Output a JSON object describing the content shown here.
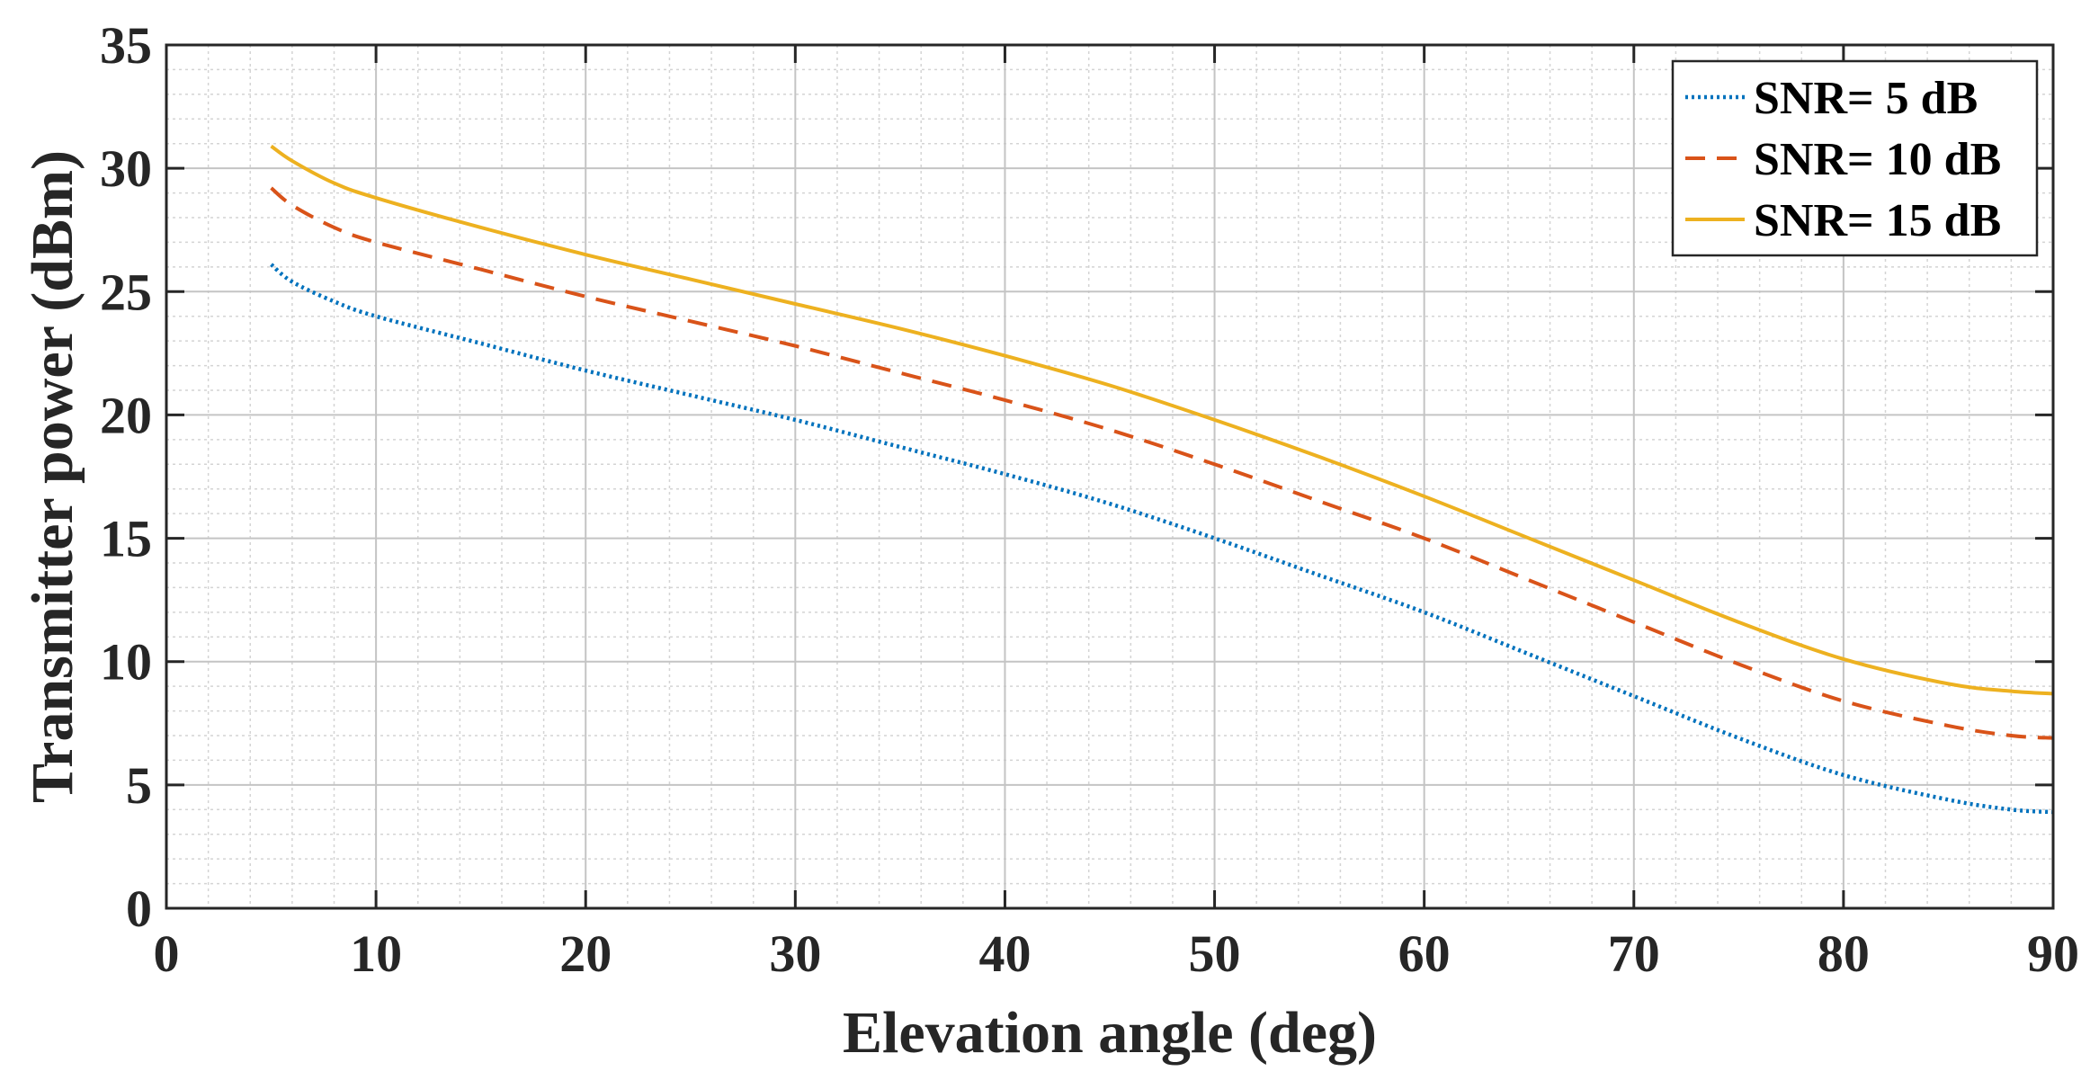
{
  "chart_data": {
    "type": "line",
    "title": "",
    "xlabel": "Elevation angle (deg)",
    "ylabel": "Transmitter power (dBm)",
    "xlim": [
      0,
      90
    ],
    "ylim": [
      0,
      35
    ],
    "xticks": [
      0,
      10,
      20,
      30,
      40,
      50,
      60,
      70,
      80,
      90
    ],
    "yticks": [
      0,
      5,
      10,
      15,
      20,
      25,
      30,
      35
    ],
    "grid": true,
    "minor_grid": true,
    "legend_position": "top-right",
    "x": [
      5,
      6,
      8,
      10,
      15,
      20,
      25,
      30,
      35,
      40,
      45,
      50,
      55,
      60,
      65,
      70,
      75,
      80,
      85,
      88,
      90
    ],
    "series": [
      {
        "name": "SNR= 5 dB",
        "color": "#0072BD",
        "style": "dotted",
        "values": [
          26.1,
          25.4,
          24.6,
          24.0,
          22.9,
          21.8,
          20.8,
          19.8,
          18.7,
          17.6,
          16.4,
          15.0,
          13.5,
          12.0,
          10.3,
          8.6,
          6.9,
          5.4,
          4.4,
          4.0,
          3.9
        ]
      },
      {
        "name": "SNR= 10 dB",
        "color": "#D95319",
        "style": "dashed",
        "values": [
          29.2,
          28.5,
          27.6,
          27.0,
          25.9,
          24.8,
          23.8,
          22.8,
          21.7,
          20.6,
          19.4,
          18.0,
          16.5,
          15.0,
          13.3,
          11.6,
          9.9,
          8.4,
          7.4,
          7.0,
          6.9
        ]
      },
      {
        "name": "SNR= 15 dB",
        "color": "#EDB120",
        "style": "solid",
        "values": [
          30.9,
          30.3,
          29.4,
          28.8,
          27.6,
          26.5,
          25.5,
          24.5,
          23.5,
          22.4,
          21.2,
          19.8,
          18.3,
          16.7,
          15.0,
          13.3,
          11.6,
          10.1,
          9.1,
          8.8,
          8.7
        ]
      }
    ]
  }
}
